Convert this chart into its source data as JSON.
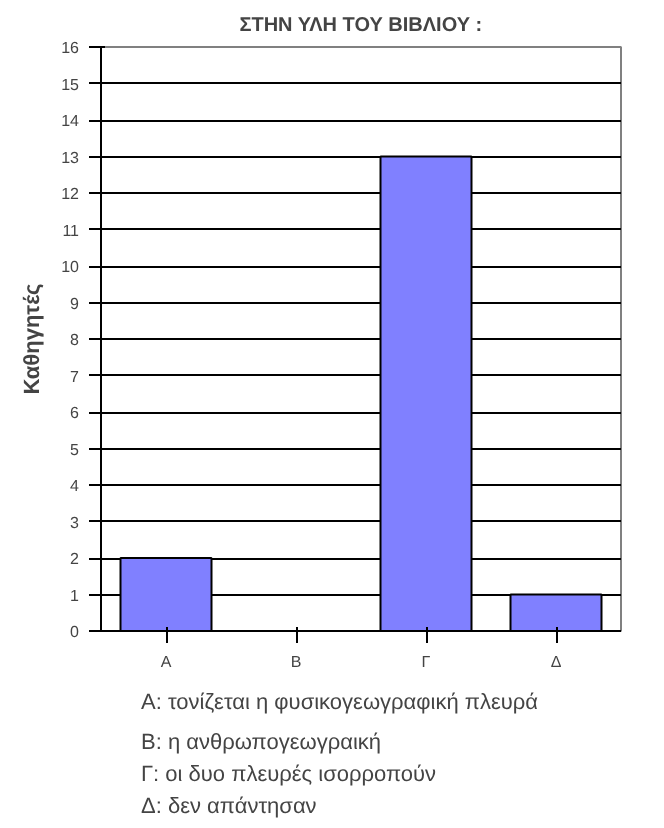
{
  "chart_data": {
    "type": "bar",
    "title": "ΣΤΗΝ ΥΛΗ ΤΟΥ ΒΙΒΛΙΟΥ :",
    "ylabel": "Καθηγητές",
    "categories": [
      "Α",
      "Β",
      "Γ",
      "Δ"
    ],
    "values": [
      2,
      0,
      13,
      1
    ],
    "color": "#8080ff",
    "ylim": [
      0,
      16
    ],
    "yticks": [
      0,
      1,
      2,
      3,
      4,
      5,
      6,
      7,
      8,
      9,
      10,
      11,
      12,
      13,
      14,
      15,
      16
    ],
    "grid": "y",
    "annotations": [
      "Α: τονίζεται η φυσικογεωγραφική πλευρά",
      "Β: η ανθρωπογεωγραική",
      "Γ: οι δυο πλευρές ισορροπούν",
      "Δ: δεν απάντησαν"
    ]
  }
}
